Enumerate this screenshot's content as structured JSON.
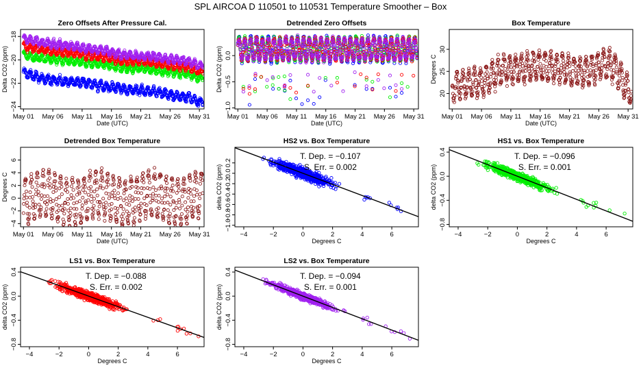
{
  "figure_title": "SPL    AIRCOA D    110501 to 110531    Temperature Smoother – Box",
  "colors": {
    "HS2": "#0000ff",
    "HS1": "#00ee00",
    "LS1": "#ff0000",
    "LS2": "#a020f0",
    "box": "#8b1a1a",
    "fit": "#000000"
  },
  "chart_data": [
    {
      "id": "p1",
      "type": "scatter",
      "title": "Zero Offsets After Pressure Cal.",
      "xlabel": "Date (UTC)",
      "ylabel": "Delta CO2 (ppm)",
      "xlim": [
        0.5,
        31.8
      ],
      "ylim": [
        -24.2,
        -17.4
      ],
      "x_ticks": [
        1,
        6,
        11,
        16,
        21,
        26,
        31
      ],
      "x_tick_labels": [
        "May 01",
        "May 06",
        "May 11",
        "May 16",
        "May 21",
        "May 26",
        "May 31"
      ],
      "y_ticks": [
        -24,
        -22,
        -20,
        -18
      ],
      "series": [
        {
          "name": "HS2",
          "color_key": "HS2",
          "day": [
            1,
            3,
            5,
            7,
            9,
            11,
            13,
            15,
            17,
            19,
            21,
            23,
            25,
            27,
            29,
            31
          ],
          "level": [
            -21.1,
            -21.4,
            -21.7,
            -21.8,
            -21.9,
            -21.9,
            -22.1,
            -22.3,
            -22.4,
            -22.6,
            -22.6,
            -22.7,
            -22.9,
            -23.1,
            -23.2,
            -23.6
          ],
          "amp": 0.5,
          "seed": 11
        },
        {
          "name": "HS1",
          "color_key": "HS1",
          "day": [
            1,
            3,
            5,
            7,
            9,
            11,
            13,
            15,
            17,
            19,
            21,
            23,
            25,
            27,
            29,
            31
          ],
          "level": [
            -19.6,
            -19.8,
            -19.9,
            -20.0,
            -20.1,
            -20.2,
            -20.3,
            -20.4,
            -20.6,
            -20.8,
            -20.7,
            -20.9,
            -21.0,
            -21.1,
            -21.2,
            -21.6
          ],
          "amp": 0.45,
          "seed": 23
        },
        {
          "name": "LS1",
          "color_key": "LS1",
          "day": [
            1,
            3,
            5,
            7,
            9,
            11,
            13,
            15,
            17,
            19,
            21,
            23,
            25,
            27,
            29,
            31
          ],
          "level": [
            -18.9,
            -19.0,
            -19.2,
            -19.3,
            -19.4,
            -19.5,
            -19.7,
            -19.8,
            -20.0,
            -20.1,
            -20.1,
            -20.2,
            -20.4,
            -20.5,
            -20.6,
            -21.0
          ],
          "amp": 0.45,
          "seed": 37
        },
        {
          "name": "LS2",
          "color_key": "LS2",
          "day": [
            1,
            3,
            5,
            7,
            9,
            11,
            13,
            15,
            17,
            19,
            21,
            23,
            25,
            27,
            29,
            31
          ],
          "level": [
            -18.2,
            -18.4,
            -18.6,
            -18.7,
            -18.8,
            -19.0,
            -19.1,
            -19.2,
            -19.5,
            -19.6,
            -19.7,
            -19.7,
            -19.9,
            -20.0,
            -20.1,
            -20.5
          ],
          "amp": 0.45,
          "seed": 41
        }
      ]
    },
    {
      "id": "p2",
      "type": "scatter",
      "title": "Detrended Zero Offsets",
      "xlabel": "Date (UTC)",
      "ylabel": "Delta CO2 (ppm)",
      "xlim": [
        0.5,
        31.8
      ],
      "ylim": [
        -1.02,
        0.5
      ],
      "x_ticks": [
        1,
        6,
        11,
        16,
        21,
        26,
        31
      ],
      "x_tick_labels": [
        "May 01",
        "May 06",
        "May 11",
        "May 16",
        "May 21",
        "May 26",
        "May 31"
      ],
      "y_ticks": [
        -1.0,
        -0.5,
        0.0
      ],
      "y_tick_labels": [
        "-1.0",
        "-0.5",
        "0.0"
      ],
      "series": [
        {
          "name": "HS2",
          "color_key": "HS2",
          "amp": 0.32,
          "dip": 0.95,
          "seed": 5
        },
        {
          "name": "HS1",
          "color_key": "HS1",
          "amp": 0.3,
          "dip": 0.85,
          "seed": 9
        },
        {
          "name": "LS1",
          "color_key": "LS1",
          "amp": 0.28,
          "dip": 0.75,
          "seed": 13
        },
        {
          "name": "LS2",
          "color_key": "LS2",
          "amp": 0.28,
          "dip": 0.7,
          "seed": 17
        }
      ]
    },
    {
      "id": "p3",
      "type": "scatter",
      "title": "Box Temperature",
      "xlabel": "Date (UTC)",
      "ylabel": "Degrees C",
      "xlim": [
        0.5,
        31.8
      ],
      "ylim": [
        16.5,
        34.5
      ],
      "x_ticks": [
        1,
        6,
        11,
        16,
        21,
        26,
        31
      ],
      "x_tick_labels": [
        "May 01",
        "May 06",
        "May 11",
        "May 16",
        "May 21",
        "May 26",
        "May 31"
      ],
      "y_ticks": [
        20,
        25,
        30
      ],
      "series": [
        {
          "name": "Box",
          "color_key": "box",
          "day": [
            1,
            3,
            5,
            7,
            9,
            11,
            13,
            15,
            17,
            19,
            21,
            23,
            25,
            27,
            29,
            31
          ],
          "level": [
            20.5,
            22,
            23,
            23.5,
            24.5,
            25,
            26,
            27,
            26,
            25,
            25,
            25.5,
            26,
            26.5,
            25,
            21
          ],
          "amp": 4.0,
          "seed": 51
        }
      ]
    },
    {
      "id": "p4",
      "type": "scatter",
      "title": "Detrended Box Temperature",
      "xlabel": "Date (UTC)",
      "ylabel": "Degrees C",
      "xlim": [
        0.5,
        31.8
      ],
      "ylim": [
        -4.5,
        8.0
      ],
      "x_ticks": [
        1,
        6,
        11,
        16,
        21,
        26,
        31
      ],
      "x_tick_labels": [
        "May 01",
        "May 06",
        "May 11",
        "May 16",
        "May 21",
        "May 26",
        "May 31"
      ],
      "y_ticks": [
        -4,
        -2,
        0,
        2,
        4,
        6
      ],
      "series": [
        {
          "name": "Box",
          "color_key": "box",
          "amp": 4.2,
          "seed": 61
        }
      ]
    },
    {
      "id": "p5",
      "type": "scatter",
      "title": "HS2 vs. Box Temperature",
      "xlabel": "Degrees C",
      "ylabel": "delta CO2 (ppm)",
      "xlim": [
        -4.6,
        7.8
      ],
      "ylim": [
        -1.03,
        0.5
      ],
      "x_ticks": [
        -4,
        -2,
        0,
        2,
        4,
        6
      ],
      "y_ticks": [
        -1.0,
        -0.8,
        -0.6,
        -0.4,
        -0.2,
        0.0,
        0.2
      ],
      "y_tick_labels": [
        "-1.0",
        "-0.8",
        "-0.6",
        "-0.4",
        "-0.2",
        "0.0",
        "0.2"
      ],
      "series": [
        {
          "name": "HS2",
          "color_key": "HS2",
          "slope": -0.107,
          "intercept": 0.0,
          "noise": 0.09,
          "seed": 71
        }
      ],
      "fit": {
        "slope": -0.107,
        "intercept": 0.0
      },
      "annotation": {
        "tdep": "T. Dep. =  −0.107",
        "serr": "S. Err. =  0.002"
      }
    },
    {
      "id": "p6",
      "type": "scatter",
      "title": "HS1 vs. Box Temperature",
      "xlabel": "Degrees C",
      "ylabel": "delta CO2 (ppm)",
      "xlim": [
        -4.6,
        7.8
      ],
      "ylim": [
        -0.84,
        0.48
      ],
      "x_ticks": [
        -4,
        -2,
        0,
        2,
        4,
        6
      ],
      "y_ticks": [
        -0.8,
        -0.4,
        0.0,
        0.4
      ],
      "y_tick_labels": [
        "-0.8",
        "-0.4",
        "0.0",
        "0.4"
      ],
      "series": [
        {
          "name": "HS1",
          "color_key": "HS1",
          "slope": -0.096,
          "intercept": 0.0,
          "noise": 0.07,
          "seed": 81
        }
      ],
      "fit": {
        "slope": -0.096,
        "intercept": 0.0
      },
      "annotation": {
        "tdep": "T. Dep. =  −0.096",
        "serr": "S. Err. =  0.001"
      }
    },
    {
      "id": "p7",
      "type": "scatter",
      "title": "LS1 vs. Box Temperature",
      "xlabel": "Degrees C",
      "ylabel": "delta CO2 (ppm)",
      "xlim": [
        -4.6,
        7.8
      ],
      "ylim": [
        -0.84,
        0.48
      ],
      "x_ticks": [
        -4,
        -2,
        0,
        2,
        4,
        6
      ],
      "y_ticks": [
        -0.8,
        -0.4,
        0.0,
        0.4
      ],
      "y_tick_labels": [
        "-0.8",
        "-0.4",
        "0.0",
        "0.4"
      ],
      "series": [
        {
          "name": "LS1",
          "color_key": "LS1",
          "slope": -0.088,
          "intercept": 0.0,
          "noise": 0.07,
          "seed": 91
        }
      ],
      "fit": {
        "slope": -0.088,
        "intercept": 0.0
      },
      "annotation": {
        "tdep": "T. Dep. =  −0.088",
        "serr": "S. Err. =  0.002"
      }
    },
    {
      "id": "p8",
      "type": "scatter",
      "title": "LS2 vs. Box Temperature",
      "xlabel": "Degrees C",
      "ylabel": "delta CO2 (ppm)",
      "xlim": [
        -4.6,
        7.8
      ],
      "ylim": [
        -0.84,
        0.48
      ],
      "x_ticks": [
        -4,
        -2,
        0,
        2,
        4,
        6
      ],
      "y_ticks": [
        -0.8,
        -0.4,
        0.0,
        0.4
      ],
      "y_tick_labels": [
        "-0.8",
        "-0.4",
        "0.0",
        "0.4"
      ],
      "series": [
        {
          "name": "LS2",
          "color_key": "LS2",
          "slope": -0.094,
          "intercept": 0.0,
          "noise": 0.05,
          "seed": 101
        }
      ],
      "fit": {
        "slope": -0.094,
        "intercept": 0.0
      },
      "annotation": {
        "tdep": "T. Dep. =  −0.094",
        "serr": "S. Err. =  0.001"
      }
    }
  ]
}
